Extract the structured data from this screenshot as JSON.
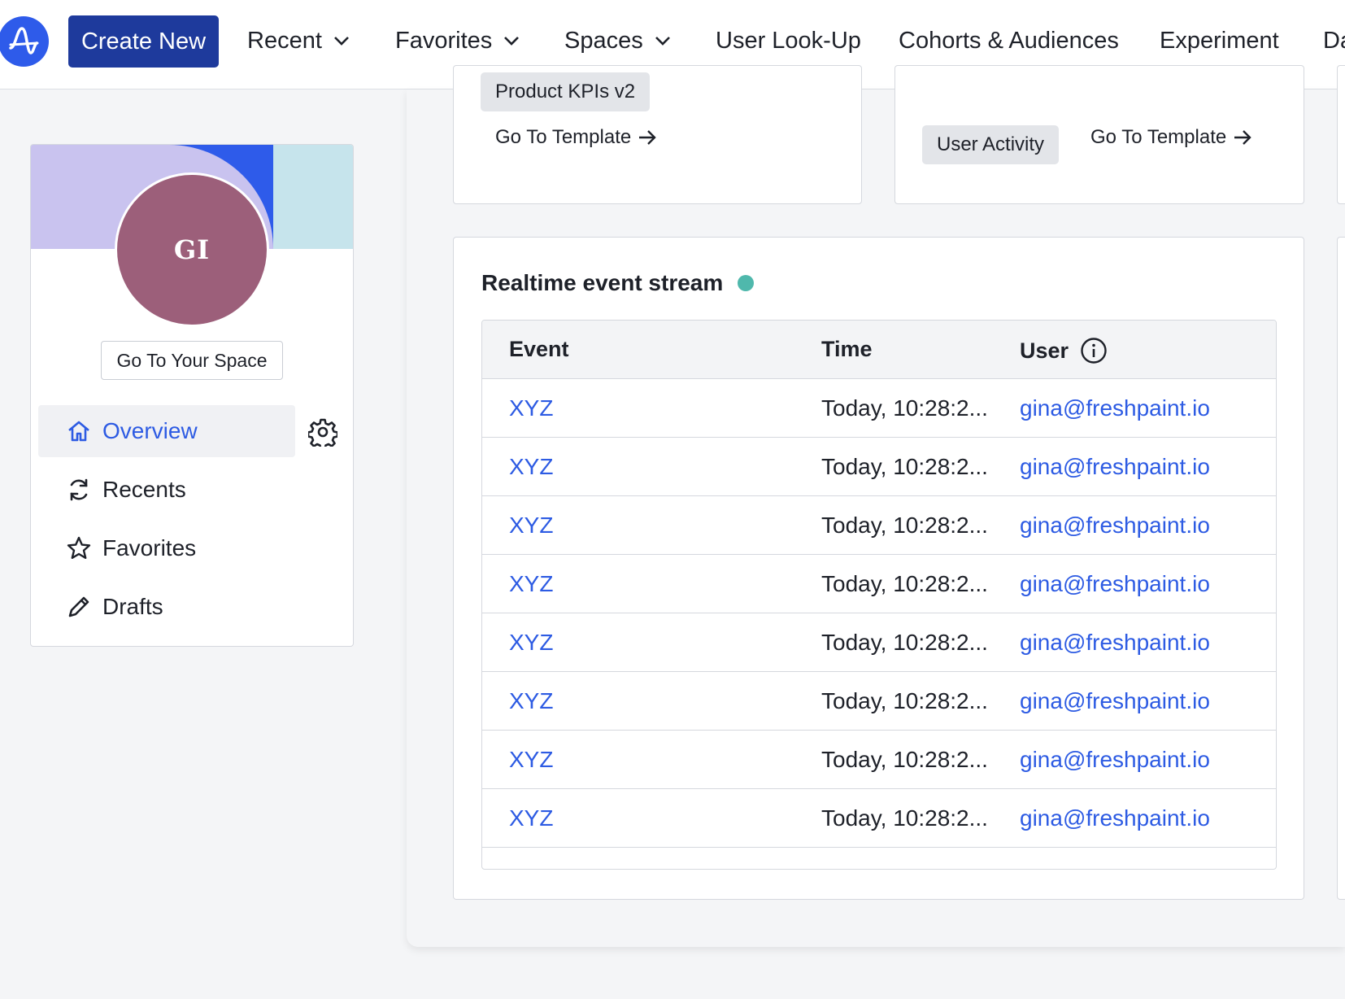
{
  "nav": {
    "create_label": "Create New",
    "items": [
      {
        "label": "Recent",
        "dropdown": true
      },
      {
        "label": "Favorites",
        "dropdown": true
      },
      {
        "label": "Spaces",
        "dropdown": true
      },
      {
        "label": "User Look-Up",
        "dropdown": false
      },
      {
        "label": "Cohorts & Audiences",
        "dropdown": false
      },
      {
        "label": "Experiment",
        "dropdown": false
      },
      {
        "label": "Da",
        "dropdown": false
      }
    ]
  },
  "profile": {
    "initials": "GI",
    "space_button": "Go To Your Space",
    "avatar_color": "#9c5f7a",
    "menu": [
      {
        "label": "Overview",
        "icon": "home-icon",
        "active": true
      },
      {
        "label": "Recents",
        "icon": "refresh-icon",
        "active": false
      },
      {
        "label": "Favorites",
        "icon": "star-icon",
        "active": false
      },
      {
        "label": "Drafts",
        "icon": "pencil-icon",
        "active": false
      }
    ]
  },
  "templates": [
    {
      "chip": "Product KPIs v2",
      "link": "Go To Template"
    },
    {
      "chip": "User Activity",
      "link": "Go To Template"
    }
  ],
  "stream": {
    "title": "Realtime event stream",
    "status_color": "#4fb8ac",
    "columns": {
      "event": "Event",
      "time": "Time",
      "user": "User"
    },
    "rows": [
      {
        "event": "XYZ",
        "time": "Today, 10:28:2...",
        "user": "gina@freshpaint.io"
      },
      {
        "event": "XYZ",
        "time": "Today, 10:28:2...",
        "user": "gina@freshpaint.io"
      },
      {
        "event": "XYZ",
        "time": "Today, 10:28:2...",
        "user": "gina@freshpaint.io"
      },
      {
        "event": "XYZ",
        "time": "Today, 10:28:2...",
        "user": "gina@freshpaint.io"
      },
      {
        "event": "XYZ",
        "time": "Today, 10:28:2...",
        "user": "gina@freshpaint.io"
      },
      {
        "event": "XYZ",
        "time": "Today, 10:28:2...",
        "user": "gina@freshpaint.io"
      },
      {
        "event": "XYZ",
        "time": "Today, 10:28:2...",
        "user": "gina@freshpaint.io"
      },
      {
        "event": "XYZ",
        "time": "Today, 10:28:2...",
        "user": "gina@freshpaint.io"
      }
    ]
  },
  "colors": {
    "accent": "#2d5be3",
    "create_button": "#1e3a9c",
    "logo": "#2e5bea"
  }
}
